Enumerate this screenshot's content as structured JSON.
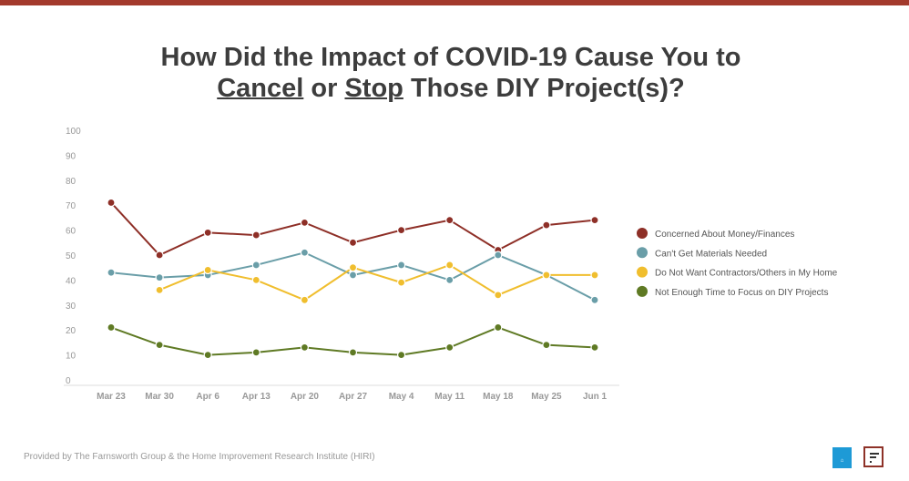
{
  "title_line1": "How Did the Impact of COVID-19 Cause You to",
  "title_cancel": "Cancel",
  "title_or": " or ",
  "title_stop": "Stop",
  "title_rest": " Those DIY Project(s)?",
  "footer": "Provided by The Farnsworth Group & the Home Improvement Research Institute (HIRI)",
  "logos": {
    "hiri": "HIRI",
    "farnsworth": "F"
  },
  "chart_data": {
    "type": "line",
    "title": "How Did the Impact of COVID-19 Cause You to Cancel or Stop Those DIY Project(s)?",
    "categories": [
      "Mar 23",
      "Mar 30",
      "Apr 6",
      "Apr 13",
      "Apr 20",
      "Apr 27",
      "May 4",
      "May 11",
      "May 18",
      "May 25",
      "Jun 1"
    ],
    "ylim": [
      0,
      100
    ],
    "yticks": [
      0,
      10,
      20,
      30,
      40,
      50,
      60,
      70,
      80,
      90,
      100
    ],
    "grid": false,
    "legend_position": "right",
    "series": [
      {
        "name": "Concerned About Money/Finances",
        "color": "#8e2f27",
        "values": [
          71,
          50,
          59,
          58,
          63,
          55,
          60,
          64,
          52,
          62,
          64
        ]
      },
      {
        "name": "Can't Get Materials Needed",
        "color": "#6a9ea8",
        "values": [
          43,
          41,
          42,
          46,
          51,
          42,
          46,
          40,
          50,
          42,
          32
        ]
      },
      {
        "name": "Do Not Want Contractors/Others in My Home",
        "color": "#f0be2e",
        "values": [
          null,
          36,
          44,
          40,
          32,
          45,
          39,
          46,
          34,
          42,
          42
        ]
      },
      {
        "name": "Not Enough Time to Focus on DIY Projects",
        "color": "#5f7a24",
        "values": [
          21,
          14,
          10,
          11,
          13,
          11,
          10,
          13,
          21,
          14,
          13
        ]
      }
    ]
  }
}
